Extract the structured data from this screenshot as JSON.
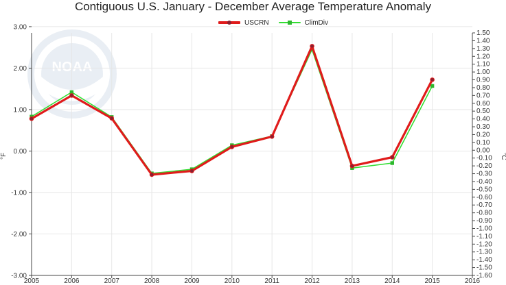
{
  "title": "Contiguous U.S. January - December Average Temperature Anomaly",
  "colors": {
    "uscrn": "#e01b1b",
    "climdiv": "#33dd33",
    "grid": "#e6e6e6",
    "axis": "#444444"
  },
  "chart_data": {
    "type": "line",
    "title": "Contiguous U.S. January - December Average Temperature Anomaly",
    "x": [
      2005,
      2006,
      2007,
      2008,
      2009,
      2010,
      2011,
      2012,
      2013,
      2014,
      2015
    ],
    "xticks": [
      2005,
      2006,
      2007,
      2008,
      2009,
      2010,
      2011,
      2012,
      2013,
      2014,
      2015,
      2016
    ],
    "xlim": [
      2005,
      2016
    ],
    "ylabel": "°F",
    "ylim": [
      -3.0,
      2.85
    ],
    "yticks": [
      "3.00",
      "2.00",
      "1.00",
      "0.00",
      "-1.00",
      "-2.00",
      "-3.00"
    ],
    "ylabel_right": "°C",
    "ylim_right": [
      -1.6,
      1.5
    ],
    "series": [
      {
        "name": "USCRN",
        "marker": "circle",
        "values": [
          0.78,
          1.34,
          0.79,
          -0.57,
          -0.48,
          0.1,
          0.35,
          2.53,
          -0.36,
          -0.15,
          1.72
        ]
      },
      {
        "name": "ClimDiv",
        "marker": "square",
        "values": [
          0.83,
          1.42,
          0.82,
          -0.54,
          -0.44,
          0.14,
          0.36,
          2.45,
          -0.41,
          -0.29,
          1.57
        ]
      }
    ],
    "legend_position": "top-center",
    "grid": true,
    "watermark": "NOAA"
  }
}
